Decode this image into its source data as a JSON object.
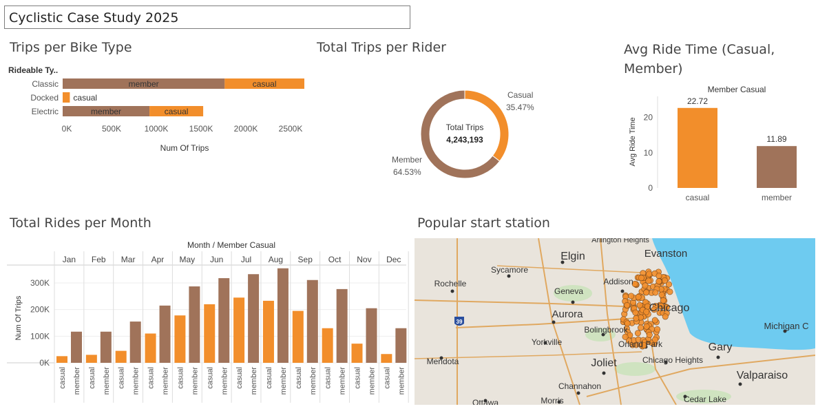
{
  "dashboard": {
    "title": "Cyclistic Case Study 2025"
  },
  "colors": {
    "member": "#a0735a",
    "casual": "#f28e2b",
    "water": "#6ecbf0",
    "land": "#e9e4dc"
  },
  "bike_type": {
    "title": "Trips per Bike Type",
    "row_header": "Rideable Ty..",
    "xlabel": "Num Of Trips",
    "ticks": [
      "0K",
      "500K",
      "1000K",
      "1500K",
      "2000K",
      "2500K"
    ],
    "tick_values": [
      0,
      500000,
      1000000,
      1500000,
      2000000,
      2500000
    ]
  },
  "rider_donut": {
    "title": "Total Trips per Rider",
    "center_label": "Total Trips",
    "center_value": "4,243,193",
    "casual_label": "Casual",
    "casual_pct": "35.47%",
    "member_label": "Member",
    "member_pct": "64.53%"
  },
  "avg_ride": {
    "title": "Avg Ride Time (Casual, Member)",
    "header": "Member Casual",
    "ylabel": "Avg Ride Time",
    "ticks": [
      "0",
      "10",
      "20"
    ],
    "casual_value_label": "22.72",
    "member_value_label": "11.89",
    "casual_label": "casual",
    "member_label": "member"
  },
  "monthly": {
    "title": "Total Rides per Month",
    "header": "Month / Member Casual",
    "ylabel": "Num Of Trips",
    "ticks": [
      "0K",
      "100K",
      "200K",
      "300K"
    ],
    "months": [
      "Jan",
      "Feb",
      "Mar",
      "Apr",
      "May",
      "Jun",
      "Jul",
      "Aug",
      "Sep",
      "Oct",
      "Nov",
      "Dec"
    ],
    "sub_labels": [
      "casual",
      "member"
    ]
  },
  "map": {
    "title": "Popular start station",
    "places": [
      "Arlington Heights",
      "Elgin",
      "Evanston",
      "Sycamore",
      "Rochelle",
      "Addison",
      "Geneva",
      "Chicago",
      "Aurora",
      "Bolingbrook",
      "Yorkville",
      "Orland Park",
      "Gary",
      "Michigan C",
      "Mendota",
      "Joliet",
      "Chicago Heights",
      "Valparaiso",
      "Channahon",
      "Ottawa",
      "Morris",
      "Cedar Lake",
      "39"
    ]
  },
  "chart_data": [
    {
      "type": "bar",
      "title": "Trips per Bike Type",
      "orientation": "horizontal",
      "stacked": true,
      "categories": [
        "Classic",
        "Docked",
        "Electric"
      ],
      "series": [
        {
          "name": "member",
          "values": [
            1810000,
            0,
            970000
          ]
        },
        {
          "name": "casual",
          "values": [
            890000,
            80000,
            600000
          ]
        }
      ],
      "xlabel": "Num Of Trips",
      "xlim": [
        0,
        2700000
      ]
    },
    {
      "type": "pie",
      "title": "Total Trips per Rider",
      "donut": true,
      "labels": [
        "Casual",
        "Member"
      ],
      "values": [
        35.47,
        64.53
      ],
      "total": 4243193
    },
    {
      "type": "bar",
      "title": "Avg Ride Time (Casual, Member)",
      "categories": [
        "casual",
        "member"
      ],
      "values": [
        22.72,
        11.89
      ],
      "ylabel": "Avg Ride Time",
      "ylim": [
        0,
        26
      ]
    },
    {
      "type": "bar",
      "title": "Total Rides per Month",
      "categories": [
        "Jan",
        "Feb",
        "Mar",
        "Apr",
        "May",
        "Jun",
        "Jul",
        "Aug",
        "Sep",
        "Oct",
        "Nov",
        "Dec"
      ],
      "series": [
        {
          "name": "casual",
          "values": [
            25000,
            30000,
            45000,
            110000,
            178000,
            220000,
            245000,
            233000,
            195000,
            130000,
            72000,
            33000
          ]
        },
        {
          "name": "member",
          "values": [
            117000,
            117000,
            155000,
            215000,
            287000,
            318000,
            333000,
            355000,
            311000,
            277000,
            205000,
            130000
          ]
        }
      ],
      "ylabel": "Num Of Trips",
      "ylim": [
        0,
        370000
      ]
    }
  ]
}
